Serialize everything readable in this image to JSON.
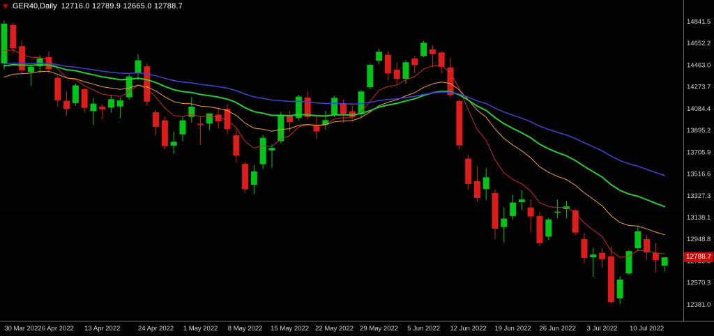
{
  "header": {
    "symbol_period": "GER40,Daily",
    "ohlc_text": "12716.0 12789.9 12665.0 12788.7"
  },
  "colors": {
    "background": "#000000",
    "bull": "#00c417",
    "bear": "#dd1c1c",
    "axis_text": "#d4d4d4",
    "separator": "#6a6a6a",
    "grid": "#121212",
    "price_tag_bg": "#d40000",
    "price_tag_text": "#ffffff",
    "title_text": "#ffffff",
    "icon_color": "#c00000"
  },
  "chart_data": {
    "type": "candlestick",
    "symbol": "GER40",
    "timeframe": "Daily",
    "last_bar": {
      "open": 12716.0,
      "high": 12789.9,
      "low": 12665.0,
      "close": 12788.7
    },
    "current_price": "12788.7",
    "price_axis_range": {
      "top": 15002,
      "bottom": 12238
    },
    "y_ticks": [
      "14841.5",
      "14652.2",
      "14463.0",
      "14273.7",
      "14084.4",
      "13895.2",
      "13705.9",
      "13516.6",
      "13327.3",
      "13138.1",
      "12948.8",
      "12759.5",
      "12570.3",
      "12381.0"
    ],
    "x_ticks": [
      {
        "label": "30 Mar 2022",
        "index": 1
      },
      {
        "label": "6 Apr 2022",
        "index": 6
      },
      {
        "label": "13 Apr 2022",
        "index": 11
      },
      {
        "label": "24 Apr 2022",
        "index": 17
      },
      {
        "label": "1 May 2022",
        "index": 22
      },
      {
        "label": "8 May 2022",
        "index": 27
      },
      {
        "label": "15 May 2022",
        "index": 32
      },
      {
        "label": "22 May 2022",
        "index": 37
      },
      {
        "label": "29 May 2022",
        "index": 42
      },
      {
        "label": "5 Jun 2022",
        "index": 47
      },
      {
        "label": "12 Jun 2022",
        "index": 52
      },
      {
        "label": "19 Jun 2022",
        "index": 57
      },
      {
        "label": "26 Jun 2022",
        "index": 62
      },
      {
        "label": "3 Jul 2022",
        "index": 67
      },
      {
        "label": "10 Jul 2022",
        "index": 72
      }
    ],
    "ohlc_columns": [
      "date",
      "open",
      "high",
      "low",
      "close"
    ],
    "candles": [
      [
        "2022-03-29",
        14475,
        14848,
        14422,
        14820
      ],
      [
        "2022-03-30",
        14810,
        14825,
        14565,
        14606
      ],
      [
        "2022-03-31",
        14625,
        14670,
        14383,
        14415
      ],
      [
        "2022-04-01",
        14400,
        14465,
        14280,
        14446
      ],
      [
        "2022-04-04",
        14450,
        14545,
        14390,
        14518
      ],
      [
        "2022-04-05",
        14530,
        14582,
        14388,
        14424
      ],
      [
        "2022-04-06",
        14350,
        14372,
        14098,
        14152
      ],
      [
        "2022-04-07",
        14150,
        14232,
        14022,
        14078
      ],
      [
        "2022-04-08",
        14130,
        14302,
        14108,
        14284
      ],
      [
        "2022-04-11",
        14250,
        14262,
        14048,
        14088
      ],
      [
        "2022-04-12",
        14060,
        14172,
        13938,
        14125
      ],
      [
        "2022-04-13",
        14100,
        14122,
        13988,
        14076
      ],
      [
        "2022-04-14",
        14090,
        14204,
        14048,
        14163
      ],
      [
        "2022-04-19",
        14100,
        14178,
        13998,
        14153
      ],
      [
        "2022-04-20",
        14180,
        14382,
        14158,
        14362
      ],
      [
        "2022-04-21",
        14390,
        14556,
        14330,
        14502
      ],
      [
        "2022-04-22",
        14450,
        14472,
        14108,
        14142
      ],
      [
        "2022-04-25",
        14050,
        14072,
        13848,
        13924
      ],
      [
        "2022-04-26",
        13980,
        14012,
        13728,
        13756
      ],
      [
        "2022-04-27",
        13760,
        13882,
        13688,
        13794
      ],
      [
        "2022-04-28",
        13858,
        14012,
        13798,
        13980
      ],
      [
        "2022-04-29",
        14010,
        14182,
        13958,
        14098
      ],
      [
        "2022-05-02",
        13950,
        14008,
        13768,
        13939
      ],
      [
        "2022-05-03",
        13952,
        14042,
        13898,
        14040
      ],
      [
        "2022-05-04",
        14030,
        14082,
        13908,
        13971
      ],
      [
        "2022-05-05",
        14080,
        14122,
        13858,
        13903
      ],
      [
        "2022-05-06",
        13850,
        13902,
        13608,
        13674
      ],
      [
        "2022-05-09",
        13602,
        13622,
        13348,
        13380
      ],
      [
        "2022-05-10",
        13420,
        13592,
        13338,
        13535
      ],
      [
        "2022-05-11",
        13598,
        13852,
        13558,
        13828
      ],
      [
        "2022-05-12",
        13718,
        13772,
        13566,
        13740
      ],
      [
        "2022-05-13",
        13798,
        14052,
        13778,
        14028
      ],
      [
        "2022-05-16",
        14020,
        14062,
        13878,
        13964
      ],
      [
        "2022-05-17",
        14000,
        14202,
        13978,
        14186
      ],
      [
        "2022-05-18",
        14178,
        14232,
        13988,
        14008
      ],
      [
        "2022-05-19",
        13938,
        14012,
        13818,
        13883
      ],
      [
        "2022-05-20",
        13940,
        14062,
        13898,
        13982
      ],
      [
        "2022-05-23",
        14032,
        14192,
        14008,
        14175
      ],
      [
        "2022-05-24",
        14130,
        14162,
        13958,
        14036
      ],
      [
        "2022-05-25",
        14058,
        14112,
        13968,
        14008
      ],
      [
        "2022-05-26",
        14032,
        14242,
        14008,
        14231
      ],
      [
        "2022-05-27",
        14268,
        14472,
        14248,
        14462
      ],
      [
        "2022-05-30",
        14498,
        14602,
        14468,
        14576
      ],
      [
        "2022-05-31",
        14550,
        14582,
        14328,
        14388
      ],
      [
        "2022-06-01",
        14420,
        14482,
        14298,
        14340
      ],
      [
        "2022-06-02",
        14342,
        14502,
        14298,
        14485
      ],
      [
        "2022-06-03",
        14518,
        14542,
        14388,
        14460
      ],
      [
        "2022-06-06",
        14538,
        14672,
        14528,
        14654
      ],
      [
        "2022-06-07",
        14598,
        14632,
        14438,
        14556
      ],
      [
        "2022-06-08",
        14570,
        14582,
        14388,
        14446
      ],
      [
        "2022-06-09",
        14440,
        14522,
        14178,
        14198
      ],
      [
        "2022-06-10",
        14148,
        14162,
        13728,
        13762
      ],
      [
        "2022-06-13",
        13648,
        13682,
        13378,
        13427
      ],
      [
        "2022-06-14",
        13452,
        13582,
        13268,
        13304
      ],
      [
        "2022-06-15",
        13382,
        13562,
        13288,
        13485
      ],
      [
        "2022-06-16",
        13348,
        13382,
        12948,
        13038
      ],
      [
        "2022-06-17",
        13052,
        13222,
        12918,
        13126
      ],
      [
        "2022-06-20",
        13148,
        13332,
        13118,
        13265
      ],
      [
        "2022-06-21",
        13268,
        13372,
        13198,
        13292
      ],
      [
        "2022-06-22",
        13222,
        13292,
        13008,
        13144
      ],
      [
        "2022-06-23",
        13148,
        13182,
        12888,
        12912
      ],
      [
        "2022-06-24",
        12968,
        13132,
        12938,
        13118
      ],
      [
        "2022-06-27",
        13178,
        13292,
        13128,
        13186
      ],
      [
        "2022-06-28",
        13208,
        13282,
        13128,
        13232
      ],
      [
        "2022-06-29",
        13198,
        13212,
        12978,
        13003
      ],
      [
        "2022-06-30",
        12948,
        13002,
        12738,
        12784
      ],
      [
        "2022-07-01",
        12788,
        12872,
        12618,
        12813
      ],
      [
        "2022-07-04",
        12828,
        12872,
        12698,
        12773
      ],
      [
        "2022-07-05",
        12798,
        12882,
        12388,
        12401
      ],
      [
        "2022-07-06",
        12432,
        12622,
        12382,
        12595
      ],
      [
        "2022-07-07",
        12648,
        12852,
        12638,
        12843
      ],
      [
        "2022-07-08",
        12868,
        13062,
        12848,
        13015
      ],
      [
        "2022-07-11",
        12948,
        12982,
        12768,
        12832
      ],
      [
        "2022-07-12",
        12828,
        12912,
        12658,
        12765
      ],
      [
        "2022-07-13",
        12716.0,
        12789.9,
        12665.0,
        12788.7
      ]
    ],
    "ma_lines": [
      {
        "name": "ma-fast-line",
        "type": "ema",
        "period": 8,
        "seed": 14520,
        "color": "#cc2a2a",
        "width": 1
      },
      {
        "name": "ma-medium-line",
        "type": "ema",
        "period": 18,
        "seed": 14300,
        "color": "#e8a33c",
        "width": 1
      },
      {
        "name": "ma-slow-line",
        "type": "ema",
        "period": 32,
        "seed": 14430,
        "color": "#2dc937",
        "width": 2
      },
      {
        "name": "ma-long-line",
        "type": "ema",
        "period": 55,
        "seed": 14460,
        "color": "#4444cc",
        "width": 1.5
      }
    ]
  }
}
